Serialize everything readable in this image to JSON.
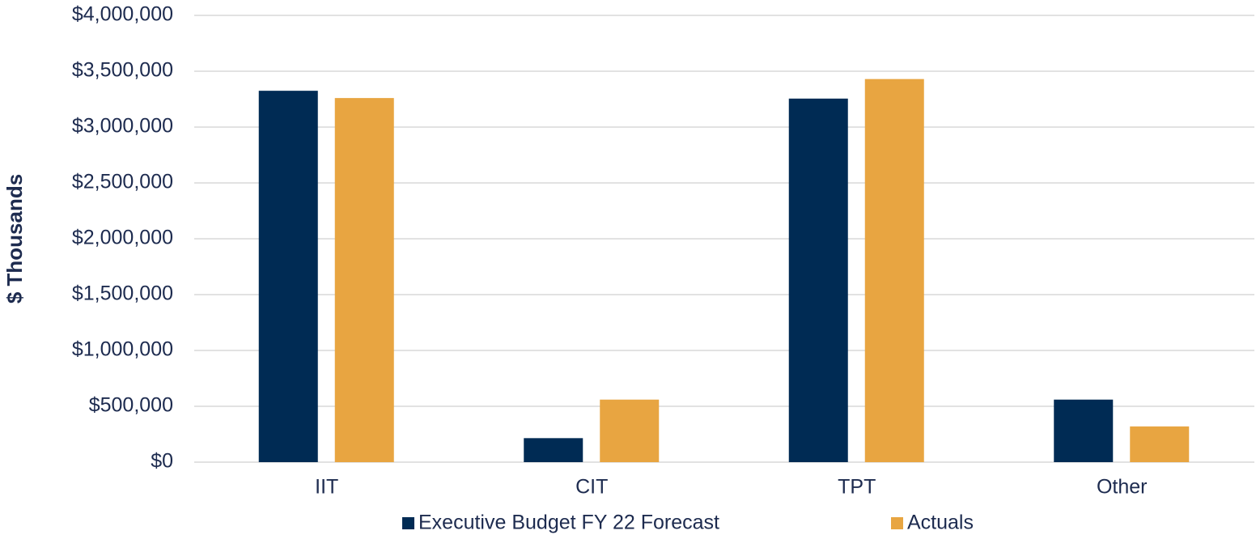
{
  "chart_data": {
    "type": "bar",
    "y_label": "$ Thousands",
    "categories": [
      "IIT",
      "CIT",
      "TPT",
      "Other"
    ],
    "series": [
      {
        "name": "Executive Budget FY 22 Forecast",
        "color": "#002b54",
        "values": [
          3325000,
          215000,
          3255000,
          560000
        ]
      },
      {
        "name": "Actuals",
        "color": "#e8a541",
        "values": [
          3260000,
          560000,
          3430000,
          320000
        ]
      }
    ],
    "ylim": [
      0,
      4000000
    ],
    "yticks": [
      {
        "value": 0,
        "label": "$0"
      },
      {
        "value": 500000,
        "label": "$500,000"
      },
      {
        "value": 1000000,
        "label": "$1,000,000"
      },
      {
        "value": 1500000,
        "label": "$1,500,000"
      },
      {
        "value": 2000000,
        "label": "$2,000,000"
      },
      {
        "value": 2500000,
        "label": "$2,500,000"
      },
      {
        "value": 3000000,
        "label": "$3,000,000"
      },
      {
        "value": 3500000,
        "label": "$3,500,000"
      },
      {
        "value": 4000000,
        "label": "$4,000,000"
      }
    ],
    "grid": true,
    "legend": "bottom"
  }
}
